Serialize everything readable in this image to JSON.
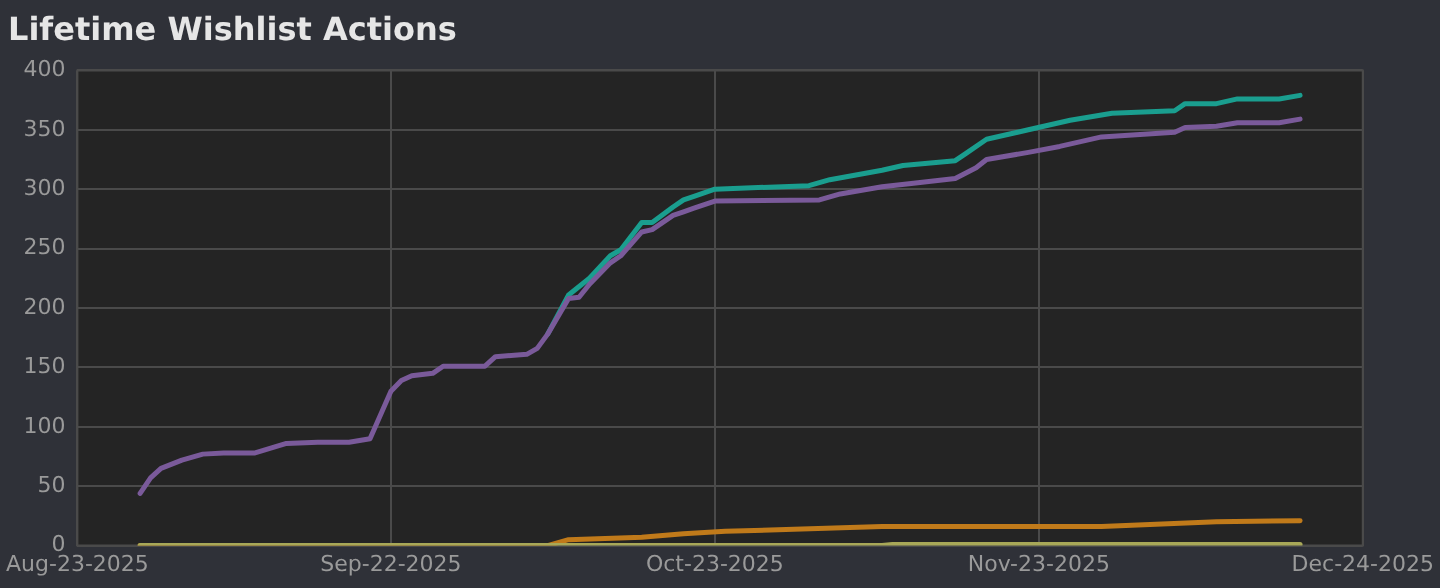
{
  "chart_data": {
    "type": "line",
    "title": "Lifetime Wishlist Actions",
    "xlim": [
      "2025-08-23",
      "2025-12-24"
    ],
    "xticks": [
      {
        "value": "2025-08-23",
        "label": "Aug-23-2025"
      },
      {
        "value": "2025-09-22",
        "label": "Sep-22-2025"
      },
      {
        "value": "2025-10-23",
        "label": "Oct-23-2025"
      },
      {
        "value": "2025-11-23",
        "label": "Nov-23-2025"
      },
      {
        "value": "2025-12-24",
        "label": "Dec-24-2025"
      }
    ],
    "ylim": [
      0,
      400
    ],
    "yticks": [
      0,
      50,
      100,
      150,
      200,
      250,
      300,
      350,
      400
    ],
    "grid": true,
    "legend": false,
    "marker": "none",
    "line_style": "solid",
    "series": [
      {
        "color": "#1a9e8f",
        "x": [
          "2025-10-07",
          "2025-10-09",
          "2025-10-11",
          "2025-10-13",
          "2025-10-14",
          "2025-10-16",
          "2025-10-17",
          "2025-10-19",
          "2025-10-20",
          "2025-10-21",
          "2025-10-23",
          "2025-11-01",
          "2025-11-03",
          "2025-11-08",
          "2025-11-10",
          "2025-11-15",
          "2025-11-16",
          "2025-11-18",
          "2025-11-22",
          "2025-11-26",
          "2025-11-30",
          "2025-12-06",
          "2025-12-07",
          "2025-12-10",
          "2025-12-12",
          "2025-12-16",
          "2025-12-18"
        ],
        "values": [
          178,
          211,
          225,
          244,
          249,
          272,
          272,
          285,
          291,
          294,
          300,
          303,
          308,
          316,
          320,
          324,
          330,
          342,
          350,
          358,
          364,
          366,
          372,
          372,
          376,
          376,
          379
        ]
      },
      {
        "color": "#7a5a9a",
        "x": [
          "2025-08-29",
          "2025-08-30",
          "2025-08-31",
          "2025-09-02",
          "2025-09-04",
          "2025-09-06",
          "2025-09-09",
          "2025-09-12",
          "2025-09-15",
          "2025-09-18",
          "2025-09-20",
          "2025-09-22",
          "2025-09-23",
          "2025-09-24",
          "2025-09-26",
          "2025-09-27",
          "2025-10-01",
          "2025-10-02",
          "2025-10-05",
          "2025-10-06",
          "2025-10-07",
          "2025-10-09",
          "2025-10-10",
          "2025-10-11",
          "2025-10-13",
          "2025-10-14",
          "2025-10-16",
          "2025-10-17",
          "2025-10-19",
          "2025-10-20",
          "2025-10-21",
          "2025-10-23",
          "2025-11-02",
          "2025-11-04",
          "2025-11-08",
          "2025-11-11",
          "2025-11-15",
          "2025-11-17",
          "2025-11-18",
          "2025-11-22",
          "2025-11-25",
          "2025-11-29",
          "2025-12-06",
          "2025-12-07",
          "2025-12-10",
          "2025-12-12",
          "2025-12-16",
          "2025-12-18"
        ],
        "values": [
          44,
          57,
          65,
          72,
          77,
          78,
          78,
          86,
          87,
          87,
          90,
          130,
          139,
          143,
          145,
          151,
          151,
          159,
          161,
          166,
          178,
          208,
          209,
          220,
          238,
          244,
          264,
          266,
          278,
          281,
          284,
          290,
          291,
          296,
          302,
          305,
          309,
          318,
          325,
          331,
          336,
          344,
          348,
          352,
          353,
          356,
          356,
          359
        ]
      },
      {
        "color": "#c07a1a",
        "x": [
          "2025-08-29",
          "2025-10-07",
          "2025-10-09",
          "2025-10-16",
          "2025-10-20",
          "2025-10-24",
          "2025-11-08",
          "2025-11-29",
          "2025-12-10",
          "2025-12-18"
        ],
        "values": [
          0,
          0,
          5,
          7,
          10,
          12,
          16,
          16,
          20,
          21
        ]
      },
      {
        "color": "#a8a858",
        "x": [
          "2025-08-29",
          "2025-11-08",
          "2025-11-09",
          "2025-12-18"
        ],
        "values": [
          0,
          0,
          1,
          1
        ]
      }
    ]
  }
}
